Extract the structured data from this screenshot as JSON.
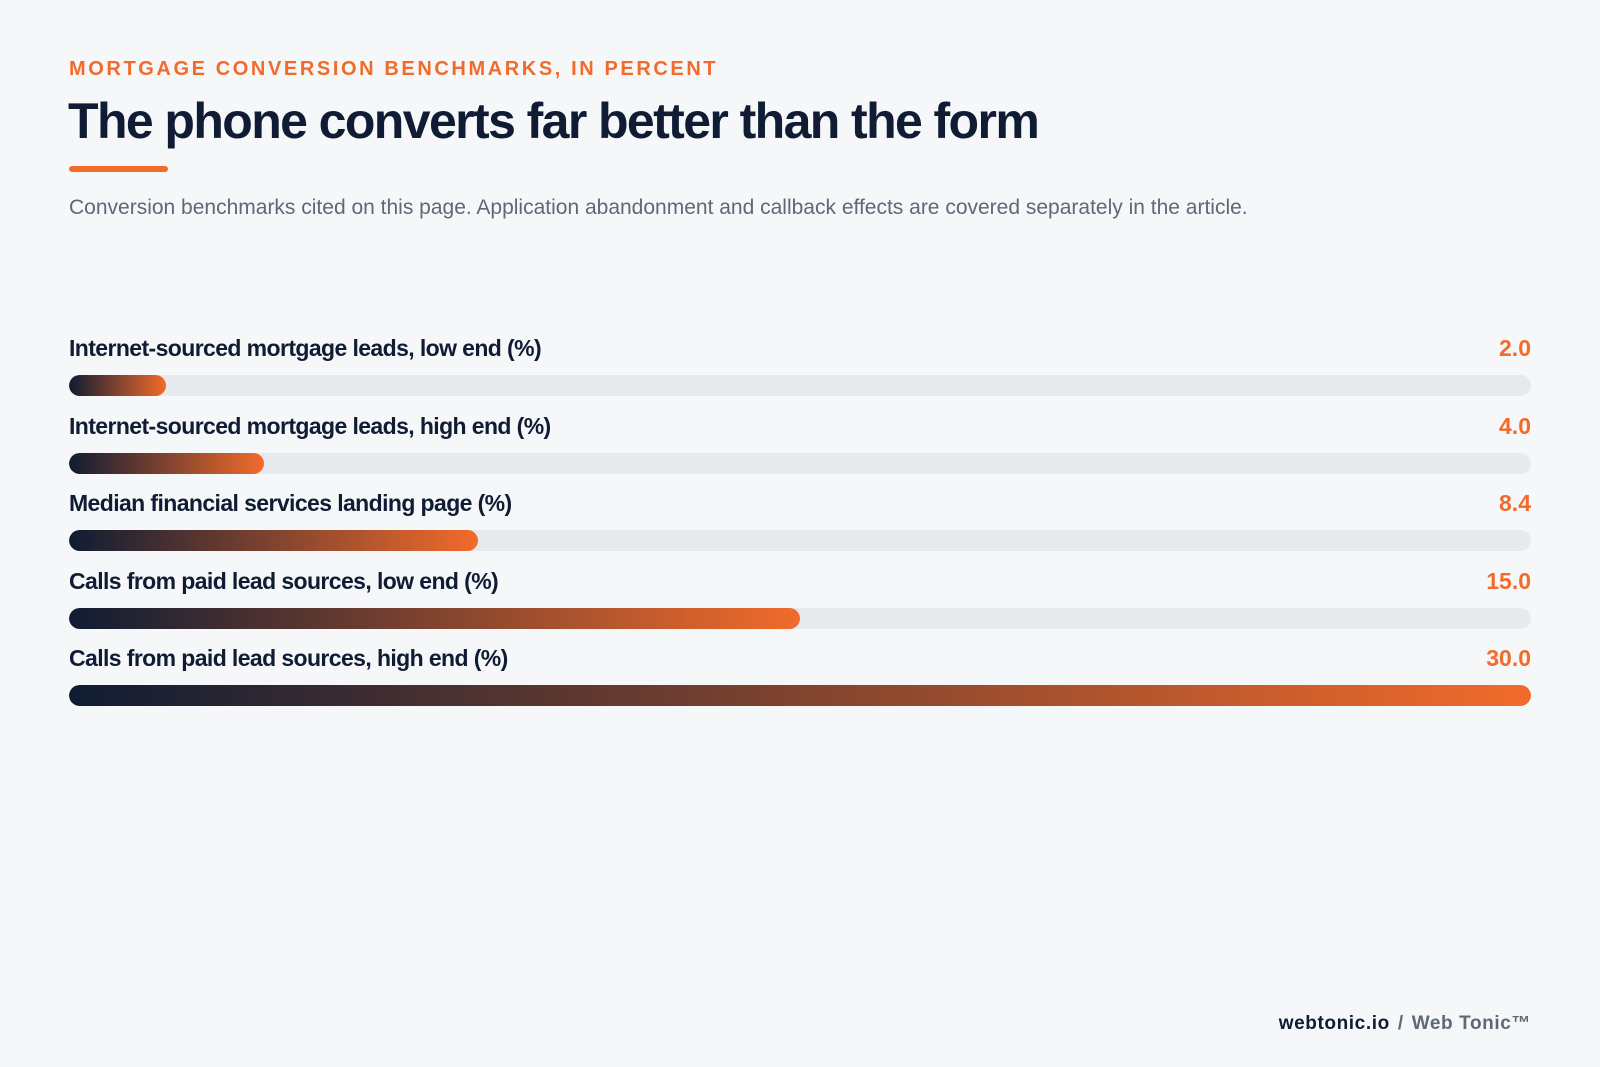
{
  "header": {
    "eyebrow": "MORTGAGE CONVERSION BENCHMARKS, IN PERCENT",
    "title": "The phone converts far better than the form",
    "subtitle": "Conversion benchmarks cited on this page. Application abandonment and callback effects are covered separately in the article."
  },
  "chart_data": {
    "type": "bar",
    "orientation": "horizontal",
    "title": "The phone converts far better than the form",
    "subtitle": "Conversion benchmarks cited on this page. Application abandonment and callback effects are covered separately in the article.",
    "xlabel": "",
    "ylabel": "",
    "xlim": [
      0,
      30
    ],
    "grid": false,
    "legend": "none",
    "categories": [
      "Internet-sourced mortgage leads, low end (%)",
      "Internet-sourced mortgage leads, high end (%)",
      "Median financial services landing page (%)",
      "Calls from paid lead sources, low end (%)",
      "Calls from paid lead sources, high end (%)"
    ],
    "values": [
      2.0,
      4.0,
      8.4,
      15.0,
      30.0
    ],
    "value_labels": [
      "2.0",
      "4.0",
      "8.4",
      "15.0",
      "30.0"
    ]
  },
  "colors": {
    "accent": "#f26b2b",
    "navy": "#0f1c33",
    "track": "#e7e9ed",
    "background": "#f6f7f9",
    "muted": "#5e6877"
  },
  "footer": {
    "domain": "webtonic.io",
    "separator": "/",
    "brand": "Web Tonic™"
  }
}
